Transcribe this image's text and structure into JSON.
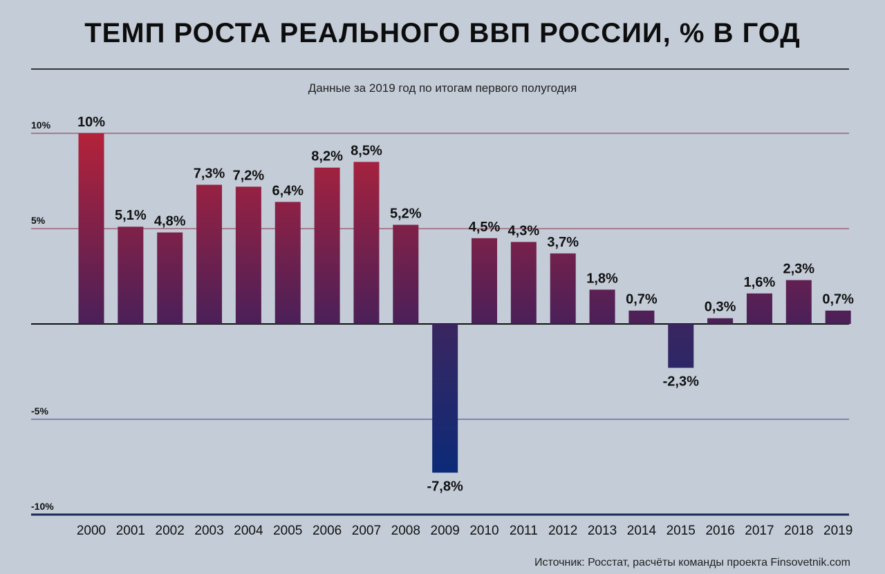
{
  "chart_data": {
    "type": "bar",
    "title": "ТЕМП РОСТА РЕАЛЬНОГО ВВП РОССИИ, % В ГОД",
    "subtitle": "Данные за 2019 год по итогам первого полугодия",
    "source": "Источник: Росстат, расчёты команды проекта Finsovetnik.com",
    "categories": [
      "2000",
      "2001",
      "2002",
      "2003",
      "2004",
      "2005",
      "2006",
      "2007",
      "2008",
      "2009",
      "2010",
      "2011",
      "2012",
      "2013",
      "2014",
      "2015",
      "2016",
      "2017",
      "2018",
      "2019"
    ],
    "values": [
      10,
      5.1,
      4.8,
      7.3,
      7.2,
      6.4,
      8.2,
      8.5,
      5.2,
      -7.8,
      4.5,
      4.3,
      3.7,
      1.8,
      0.7,
      -2.3,
      0.3,
      1.6,
      2.3,
      0.7
    ],
    "value_labels": [
      "10%",
      "5,1%",
      "4,8%",
      "7,3%",
      "7,2%",
      "6,4%",
      "8,2%",
      "8,5%",
      "5,2%",
      "-7,8%",
      "4,5%",
      "4,3%",
      "3,7%",
      "1,8%",
      "0,7%",
      "-2,3%",
      "0,3%",
      "1,6%",
      "2,3%",
      "0,7%"
    ],
    "yticks": [
      10,
      5,
      -5,
      -10
    ],
    "ytick_labels": [
      "10%",
      "5%",
      "-5%",
      "-10%"
    ],
    "ylim": [
      -10,
      10
    ],
    "grid": true,
    "colors": {
      "positive_top": "#b4223a",
      "positive_bottom": "#4a2058",
      "negative_top": "#3a2660",
      "negative_bottom": "#0b2a78",
      "grid_positive": "#8a2a44",
      "grid_negative": "#3a3a9a",
      "axis": "#111111"
    }
  }
}
